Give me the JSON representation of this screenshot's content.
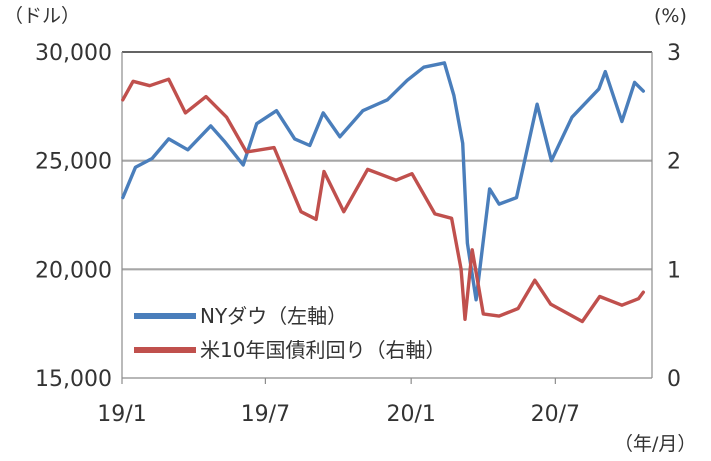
{
  "chart_data": {
    "type": "line",
    "title": "",
    "left_axis": {
      "unit": "（ドル）",
      "min": 15000,
      "max": 30000,
      "ticks": [
        15000,
        20000,
        25000,
        30000
      ],
      "tick_labels": [
        "15,000",
        "20,000",
        "25,000",
        "30,000"
      ]
    },
    "right_axis": {
      "unit": "(%)",
      "min": 0,
      "max": 3,
      "ticks": [
        0,
        1,
        2,
        3
      ],
      "tick_labels": [
        "0",
        "1",
        "2",
        "3"
      ]
    },
    "x_axis": {
      "unit": "（年/月）",
      "start": "2019-01",
      "end": "2020-10",
      "ticks": [
        "2019-01",
        "2019-07",
        "2020-01",
        "2020-07"
      ],
      "tick_labels": [
        "19/1",
        "19/7",
        "20/1",
        "20/7"
      ]
    },
    "grid": true,
    "legend_position": "bottom-left",
    "series": [
      {
        "name": "NYダウ（左軸）",
        "axis": "left",
        "color": "#4a7ebb",
        "points": [
          [
            "2019-01-02",
            23300
          ],
          [
            "2019-01-18",
            24700
          ],
          [
            "2019-02-08",
            25100
          ],
          [
            "2019-03-01",
            26000
          ],
          [
            "2019-03-25",
            25500
          ],
          [
            "2019-04-23",
            26600
          ],
          [
            "2019-05-10",
            25900
          ],
          [
            "2019-06-03",
            24800
          ],
          [
            "2019-06-20",
            26700
          ],
          [
            "2019-07-15",
            27300
          ],
          [
            "2019-08-07",
            26000
          ],
          [
            "2019-08-26",
            25700
          ],
          [
            "2019-09-12",
            27200
          ],
          [
            "2019-10-03",
            26100
          ],
          [
            "2019-11-01",
            27300
          ],
          [
            "2019-12-02",
            27800
          ],
          [
            "2019-12-27",
            28700
          ],
          [
            "2020-01-17",
            29300
          ],
          [
            "2020-02-12",
            29500
          ],
          [
            "2020-02-24",
            28000
          ],
          [
            "2020-03-06",
            25800
          ],
          [
            "2020-03-12",
            21200
          ],
          [
            "2020-03-23",
            18600
          ],
          [
            "2020-04-09",
            23700
          ],
          [
            "2020-04-21",
            23000
          ],
          [
            "2020-05-13",
            23300
          ],
          [
            "2020-06-08",
            27600
          ],
          [
            "2020-06-26",
            25000
          ],
          [
            "2020-07-22",
            27000
          ],
          [
            "2020-08-25",
            28300
          ],
          [
            "2020-09-02",
            29100
          ],
          [
            "2020-09-23",
            26800
          ],
          [
            "2020-10-09",
            28600
          ],
          [
            "2020-10-20",
            28200
          ]
        ]
      },
      {
        "name": "米10年国債利回り（右軸）",
        "axis": "right",
        "color": "#c0504d",
        "points": [
          [
            "2019-01-02",
            2.56
          ],
          [
            "2019-01-15",
            2.73
          ],
          [
            "2019-02-05",
            2.69
          ],
          [
            "2019-03-01",
            2.75
          ],
          [
            "2019-03-22",
            2.44
          ],
          [
            "2019-04-17",
            2.59
          ],
          [
            "2019-05-13",
            2.4
          ],
          [
            "2019-06-07",
            2.08
          ],
          [
            "2019-07-12",
            2.12
          ],
          [
            "2019-08-15",
            1.53
          ],
          [
            "2019-09-03",
            1.46
          ],
          [
            "2019-09-13",
            1.9
          ],
          [
            "2019-10-08",
            1.53
          ],
          [
            "2019-11-07",
            1.92
          ],
          [
            "2019-12-13",
            1.82
          ],
          [
            "2020-01-02",
            1.88
          ],
          [
            "2020-01-31",
            1.51
          ],
          [
            "2020-02-21",
            1.47
          ],
          [
            "2020-03-04",
            1.0
          ],
          [
            "2020-03-09",
            0.54
          ],
          [
            "2020-03-18",
            1.18
          ],
          [
            "2020-04-01",
            0.59
          ],
          [
            "2020-04-21",
            0.57
          ],
          [
            "2020-05-15",
            0.64
          ],
          [
            "2020-06-05",
            0.9
          ],
          [
            "2020-06-25",
            0.68
          ],
          [
            "2020-08-04",
            0.52
          ],
          [
            "2020-08-26",
            0.75
          ],
          [
            "2020-09-23",
            0.67
          ],
          [
            "2020-10-14",
            0.73
          ],
          [
            "2020-10-20",
            0.79
          ]
        ]
      }
    ]
  }
}
